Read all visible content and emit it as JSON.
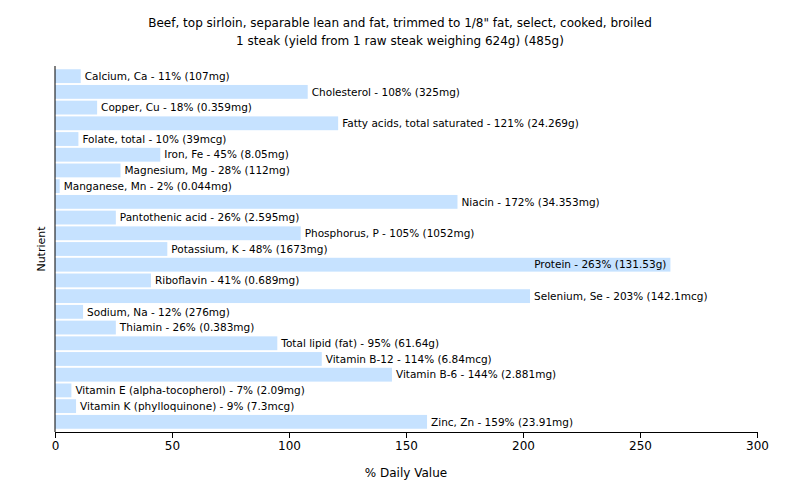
{
  "chart_data": {
    "type": "bar",
    "orientation": "horizontal",
    "title": "Beef, top sirloin, separable lean and fat, trimmed to 1/8\" fat, select, cooked, broiled",
    "subtitle": "1 steak (yield from 1 raw steak weighing 624g) (485g)",
    "xlabel": "% Daily Value",
    "ylabel": "Nutrient",
    "categories": [
      "Calcium, Ca - 11% (107mg)",
      "Cholesterol - 108% (325mg)",
      "Copper, Cu - 18% (0.359mg)",
      "Fatty acids, total saturated - 121% (24.269g)",
      "Folate, total - 10% (39mcg)",
      "Iron, Fe - 45% (8.05mg)",
      "Magnesium, Mg - 28% (112mg)",
      "Manganese, Mn - 2% (0.044mg)",
      "Niacin - 172% (34.353mg)",
      "Pantothenic acid - 26% (2.595mg)",
      "Phosphorus, P - 105% (1052mg)",
      "Potassium, K - 48% (1673mg)",
      "Protein - 263% (131.53g)",
      "Riboflavin - 41% (0.689mg)",
      "Selenium, Se - 203% (142.1mcg)",
      "Sodium, Na - 12% (276mg)",
      "Thiamin - 26% (0.383mg)",
      "Total lipid (fat) - 95% (61.64g)",
      "Vitamin B-12 - 114% (6.84mcg)",
      "Vitamin B-6 - 144% (2.881mg)",
      "Vitamin E (alpha-tocopherol) - 7% (2.09mg)",
      "Vitamin K (phylloquinone) - 9% (7.3mcg)",
      "Zinc, Zn - 159% (23.91mg)"
    ],
    "values": [
      11,
      108,
      18,
      121,
      10,
      45,
      28,
      2,
      172,
      26,
      105,
      48,
      263,
      41,
      203,
      12,
      26,
      95,
      114,
      144,
      7,
      9,
      159
    ],
    "color": "#c6e2ff",
    "xlim": [
      0,
      300
    ],
    "xticks": [
      0,
      50,
      100,
      150,
      200,
      250,
      300
    ],
    "tick_labels": "x"
  }
}
